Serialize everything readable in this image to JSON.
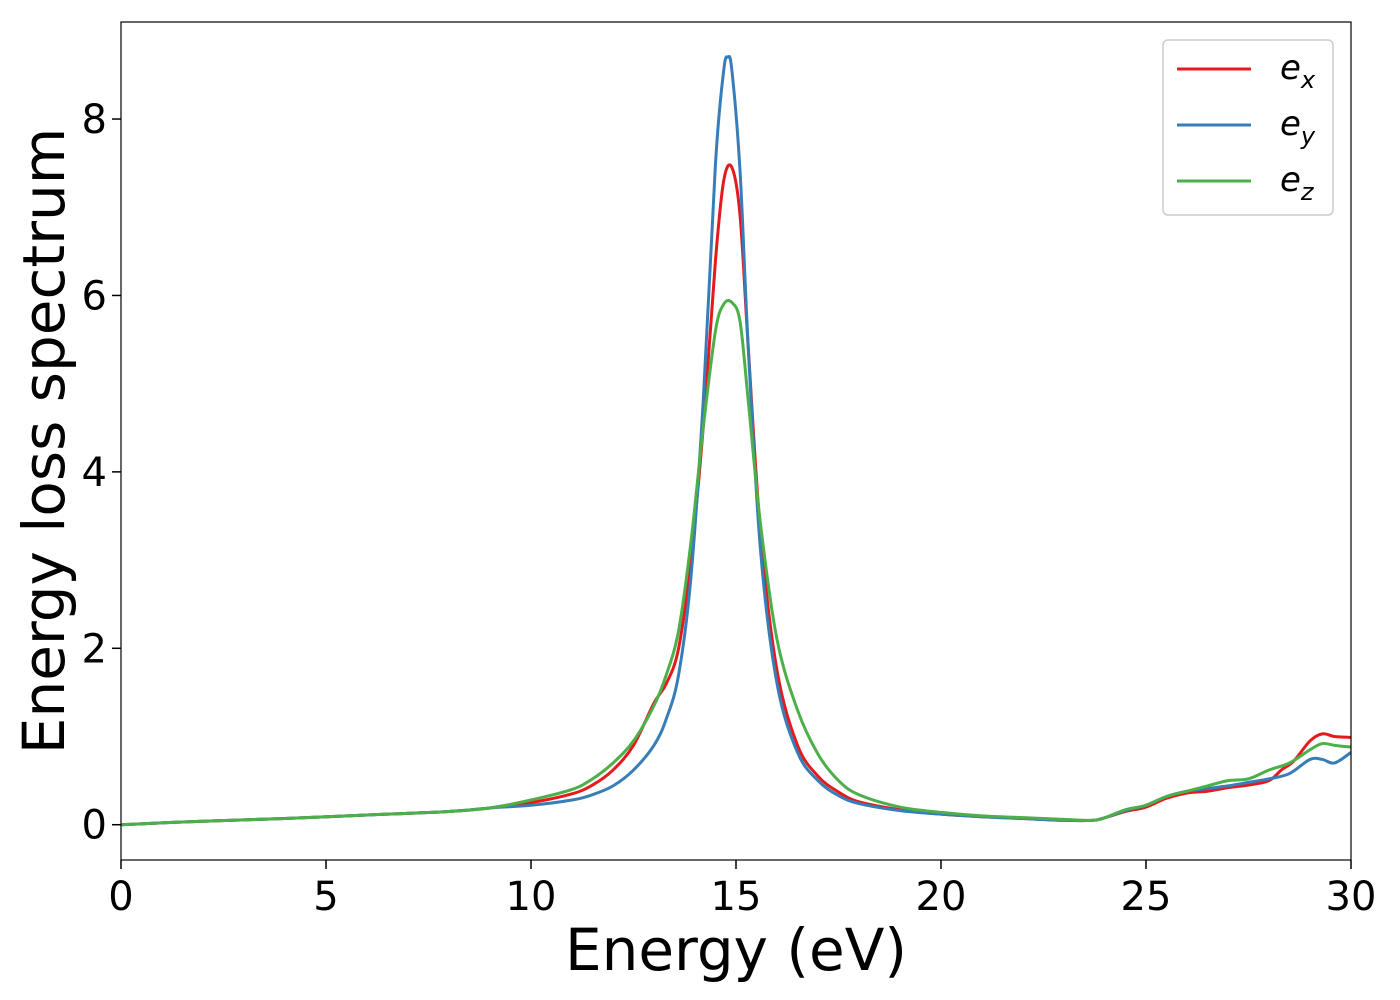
{
  "chart_data": {
    "type": "line",
    "xlabel": "Energy (eV)",
    "ylabel": "Energy loss spectrum",
    "xlim": [
      0,
      30
    ],
    "ylim": [
      -0.4,
      9.1
    ],
    "xticks": [
      0,
      5,
      10,
      15,
      20,
      25,
      30
    ],
    "xtick_labels": [
      "0",
      "5",
      "10",
      "15",
      "20",
      "25",
      "30"
    ],
    "yticks": [
      0,
      2,
      4,
      6,
      8
    ],
    "ytick_labels": [
      "0",
      "2",
      "4",
      "6",
      "8"
    ],
    "grid": false,
    "legend_position": "top-right",
    "series": [
      {
        "name": "e",
        "sub": "x",
        "color": "#e41a1c",
        "x": [
          0,
          2,
          4,
          6,
          8,
          9,
          10,
          11,
          11.5,
          12,
          12.5,
          13,
          13.3,
          13.6,
          13.9,
          14.2,
          14.5,
          14.7,
          14.9,
          15.1,
          15.3,
          15.6,
          16,
          16.5,
          17,
          17.5,
          18,
          19,
          20,
          21,
          22,
          23,
          23.7,
          24,
          24.5,
          25,
          25.5,
          26,
          26.5,
          27,
          27.5,
          28,
          28.3,
          28.6,
          29,
          29.3,
          29.6,
          30
        ],
        "y": [
          0,
          0.04,
          0.07,
          0.11,
          0.15,
          0.19,
          0.25,
          0.35,
          0.45,
          0.62,
          0.9,
          1.38,
          1.6,
          2.0,
          3.0,
          4.5,
          6.4,
          7.3,
          7.45,
          6.9,
          5.4,
          3.3,
          1.75,
          0.9,
          0.55,
          0.37,
          0.26,
          0.17,
          0.12,
          0.09,
          0.07,
          0.05,
          0.05,
          0.08,
          0.15,
          0.2,
          0.3,
          0.36,
          0.38,
          0.42,
          0.45,
          0.5,
          0.62,
          0.72,
          0.95,
          1.03,
          1.0,
          0.99
        ]
      },
      {
        "name": "e",
        "sub": "y",
        "color": "#377eb8",
        "x": [
          0,
          2,
          4,
          6,
          8,
          9,
          10,
          11,
          11.5,
          12,
          12.5,
          13,
          13.3,
          13.6,
          13.9,
          14.2,
          14.5,
          14.7,
          14.8,
          14.9,
          15.1,
          15.3,
          15.6,
          16,
          16.5,
          17,
          17.5,
          18,
          19,
          20,
          21,
          22,
          23,
          23.7,
          24,
          24.5,
          25,
          25.5,
          26,
          26.5,
          27,
          27.5,
          28,
          28.5,
          29,
          29.3,
          29.6,
          30
        ],
        "y": [
          0,
          0.04,
          0.07,
          0.11,
          0.15,
          0.19,
          0.22,
          0.28,
          0.34,
          0.44,
          0.62,
          0.9,
          1.2,
          1.7,
          2.8,
          4.8,
          7.5,
          8.55,
          8.7,
          8.55,
          7.4,
          5.4,
          3.1,
          1.6,
          0.82,
          0.5,
          0.33,
          0.24,
          0.16,
          0.12,
          0.09,
          0.07,
          0.05,
          0.05,
          0.08,
          0.16,
          0.22,
          0.32,
          0.38,
          0.41,
          0.44,
          0.48,
          0.52,
          0.58,
          0.74,
          0.74,
          0.7,
          0.82
        ]
      },
      {
        "name": "e",
        "sub": "z",
        "color": "#4daf4a",
        "x": [
          0,
          2,
          4,
          6,
          8,
          9,
          10,
          11,
          11.5,
          12,
          12.5,
          13,
          13.3,
          13.6,
          13.9,
          14.2,
          14.5,
          14.7,
          14.9,
          15.1,
          15.3,
          15.6,
          16,
          16.5,
          17,
          17.5,
          18,
          19,
          20,
          21,
          22,
          23,
          23.7,
          24,
          24.5,
          25,
          25.5,
          26,
          26.5,
          27,
          27.5,
          28,
          28.5,
          29,
          29.3,
          29.6,
          30
        ],
        "y": [
          0,
          0.04,
          0.07,
          0.11,
          0.15,
          0.19,
          0.28,
          0.4,
          0.52,
          0.7,
          0.95,
          1.35,
          1.7,
          2.2,
          3.2,
          4.5,
          5.6,
          5.9,
          5.92,
          5.7,
          4.8,
          3.4,
          2.1,
          1.3,
          0.8,
          0.5,
          0.34,
          0.2,
          0.14,
          0.1,
          0.08,
          0.06,
          0.05,
          0.08,
          0.17,
          0.22,
          0.32,
          0.38,
          0.44,
          0.5,
          0.52,
          0.62,
          0.7,
          0.85,
          0.92,
          0.9,
          0.88
        ]
      }
    ]
  }
}
